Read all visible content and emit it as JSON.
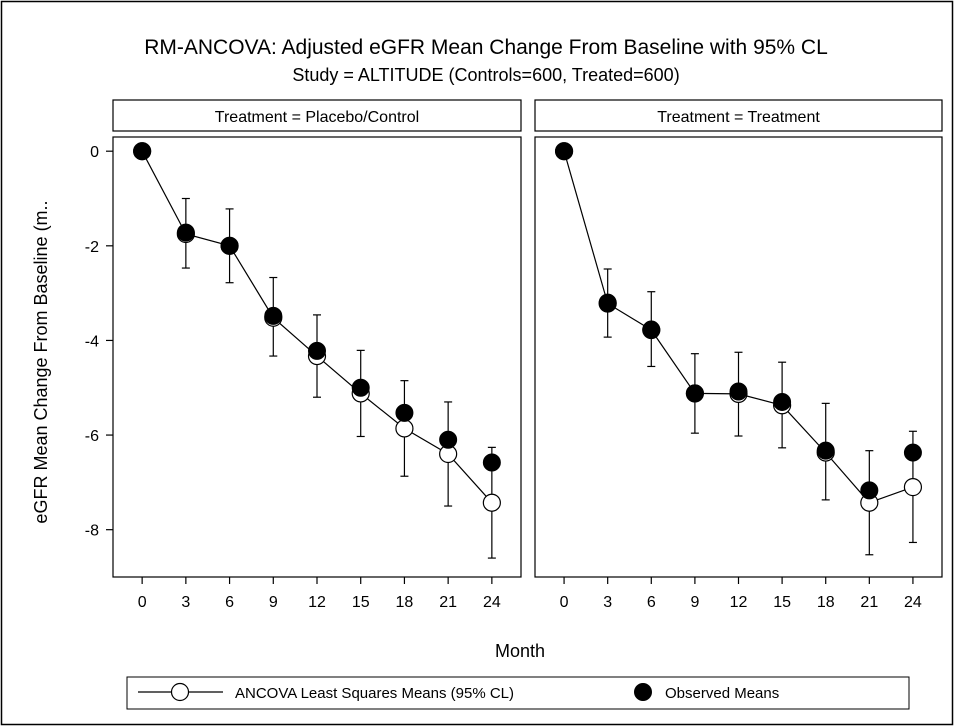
{
  "chart_data": {
    "type": "line",
    "title": "RM-ANCOVA: Adjusted eGFR Mean Change From Baseline with 95% CL",
    "subtitle": "Study = ALTITUDE (Controls=600, Treated=600)",
    "xlabel": "Month",
    "ylabel": "eGFR Mean Change From Baseline (m..",
    "x": [
      0,
      3,
      6,
      9,
      12,
      15,
      18,
      21,
      24
    ],
    "xlim": [
      -2,
      26
    ],
    "ylim": [
      -9,
      0.3
    ],
    "yticks": [
      0,
      -2,
      -4,
      -6,
      -8
    ],
    "ytick_labels": [
      "0",
      "-2",
      "-4",
      "-6",
      "-8"
    ],
    "grid": false,
    "legend_placement": "bottom",
    "legend": [
      {
        "label": "ANCOVA Least Squares Means (95% CL)",
        "marker": "open-circle-line"
      },
      {
        "label": "Observed Means",
        "marker": "filled-circle"
      }
    ],
    "panels": [
      {
        "label": "Treatment = Placebo/Control",
        "series": [
          {
            "name": "ANCOVA Least Squares Means (95% CL)",
            "values": [
              0,
              -1.75,
              -2.0,
              -3.52,
              -4.33,
              -5.12,
              -5.86,
              -6.4,
              -7.43
            ],
            "lower": [
              0,
              -2.47,
              -2.78,
              -4.33,
              -5.2,
              -6.03,
              -6.87,
              -7.5,
              -8.6
            ],
            "upper": [
              0,
              -1.0,
              -1.22,
              -2.67,
              -3.46,
              -4.21,
              -4.85,
              -5.3,
              -6.26
            ]
          },
          {
            "name": "Observed Means",
            "values": [
              0,
              -1.72,
              -2.0,
              -3.48,
              -4.22,
              -5.0,
              -5.53,
              -6.1,
              -6.58
            ]
          }
        ]
      },
      {
        "label": "Treatment = Treatment",
        "series": [
          {
            "name": "ANCOVA Least Squares Means (95% CL)",
            "values": [
              0,
              -3.22,
              -3.78,
              -5.12,
              -5.13,
              -5.37,
              -6.37,
              -7.43,
              -7.1
            ],
            "lower": [
              0,
              -3.93,
              -4.55,
              -5.96,
              -6.02,
              -6.27,
              -7.37,
              -8.53,
              -8.27
            ],
            "upper": [
              0,
              -2.49,
              -2.97,
              -4.28,
              -4.25,
              -4.46,
              -5.33,
              -6.33,
              -5.92
            ]
          },
          {
            "name": "Observed Means",
            "values": [
              0,
              -3.2,
              -3.77,
              -5.12,
              -5.08,
              -5.3,
              -6.33,
              -7.17,
              -6.37
            ]
          }
        ]
      }
    ]
  }
}
